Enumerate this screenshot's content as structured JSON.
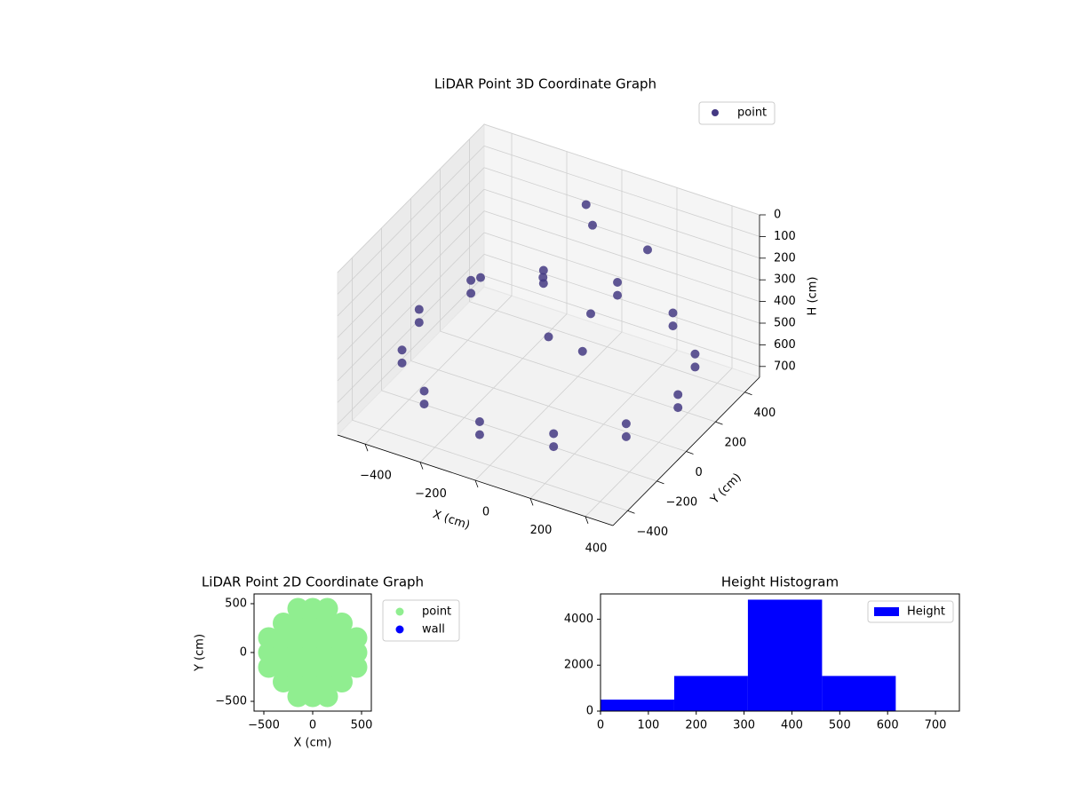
{
  "chart_data": [
    {
      "type": "scatter3d",
      "title": "LiDAR Point 3D Coordinate Graph",
      "xlabel": "X (cm)",
      "ylabel": "Y (cm)",
      "zlabel": "H (cm)",
      "xlim": [
        -500,
        500
      ],
      "ylim": [
        -500,
        500
      ],
      "zlim": [
        0,
        750
      ],
      "z_inverted": true,
      "grid": true,
      "legend": "upper right",
      "xticks": [
        {
          "value": -400,
          "label": "−400"
        },
        {
          "value": -200,
          "label": "−200"
        },
        0,
        200,
        400
      ],
      "yticks": [
        {
          "value": -400,
          "label": "−400"
        },
        {
          "value": -200,
          "label": "−200"
        },
        0,
        200,
        400
      ],
      "zticks": [
        0,
        100,
        200,
        300,
        400,
        500,
        600,
        700
      ],
      "series": [
        {
          "name": "point",
          "color": "#443983",
          "x": [
            470,
            407,
            235,
            0,
            -235,
            -407,
            -470,
            -407,
            -235,
            0,
            235,
            407,
            470,
            407,
            235,
            0,
            -235,
            -407,
            -470,
            -407,
            -235,
            0,
            235,
            407,
            0,
            100,
            -100,
            150,
            0,
            -50,
            200,
            -300
          ],
          "y": [
            0,
            235,
            407,
            470,
            407,
            235,
            0,
            -235,
            -407,
            -470,
            -407,
            -235,
            0,
            235,
            407,
            470,
            407,
            235,
            0,
            -235,
            -407,
            -470,
            -407,
            -235,
            0,
            100,
            150,
            -50,
            300,
            350,
            300,
            100
          ],
          "z": [
            560,
            560,
            560,
            560,
            560,
            560,
            560,
            560,
            560,
            560,
            560,
            560,
            500,
            500,
            500,
            500,
            500,
            500,
            500,
            500,
            500,
            500,
            500,
            500,
            430,
            350,
            300,
            400,
            120,
            80,
            150,
            350
          ]
        }
      ]
    },
    {
      "type": "scatter",
      "title": "LiDAR Point 2D Coordinate Graph",
      "xlabel": "X (cm)",
      "ylabel": "Y (cm)",
      "xlim": [
        -600,
        600
      ],
      "ylim": [
        -600,
        600
      ],
      "legend": "outside right",
      "xticks": [
        {
          "value": -500,
          "label": "−500"
        },
        0,
        500
      ],
      "yticks": [
        {
          "value": -500,
          "label": "−500"
        },
        0,
        500
      ],
      "series": [
        {
          "name": "point",
          "color": "#90ee90",
          "x": [
            -450,
            -450,
            -450,
            -300,
            -300,
            -300,
            -300,
            -300,
            -150,
            -150,
            -150,
            -150,
            -150,
            -150,
            -150,
            0,
            0,
            0,
            0,
            0,
            0,
            0,
            150,
            150,
            150,
            150,
            150,
            150,
            150,
            300,
            300,
            300,
            300,
            300,
            450,
            450,
            450
          ],
          "y": [
            -150,
            0,
            150,
            -300,
            -150,
            0,
            150,
            300,
            -450,
            -300,
            -150,
            0,
            150,
            300,
            450,
            -450,
            -300,
            -150,
            0,
            150,
            300,
            450,
            -450,
            -300,
            -150,
            0,
            150,
            300,
            450,
            -300,
            -150,
            0,
            150,
            300,
            -150,
            0,
            150
          ]
        },
        {
          "name": "wall",
          "color": "#0000ff",
          "x": [],
          "y": []
        }
      ]
    },
    {
      "type": "histogram",
      "title": "Height Histogram",
      "name": "Height",
      "color": "#0000ff",
      "legend": "upper right",
      "bins": [
        0,
        154,
        308,
        463,
        617
      ],
      "counts": [
        500,
        1530,
        4850,
        1530
      ],
      "xlim": [
        0,
        750
      ],
      "ylim": [
        0,
        5100
      ],
      "xticks": [
        0,
        100,
        200,
        300,
        400,
        500,
        600,
        700
      ],
      "yticks": [
        0,
        2000,
        4000
      ]
    }
  ]
}
